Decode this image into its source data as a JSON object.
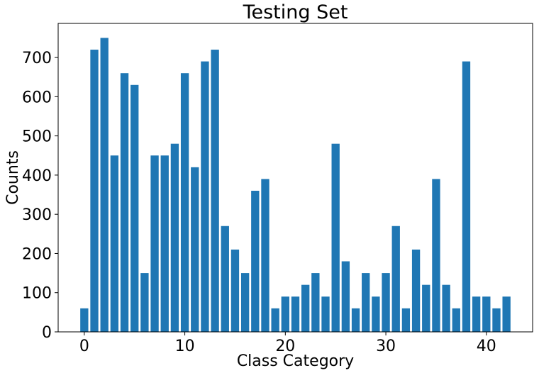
{
  "chart_data": {
    "type": "bar",
    "title": "Testing Set",
    "xlabel": "Class Category",
    "ylabel": "Counts",
    "x": [
      0,
      1,
      2,
      3,
      4,
      5,
      6,
      7,
      8,
      9,
      10,
      11,
      12,
      13,
      14,
      15,
      16,
      17,
      18,
      19,
      20,
      21,
      22,
      23,
      24,
      25,
      26,
      27,
      28,
      29,
      30,
      31,
      32,
      33,
      34,
      35,
      36,
      37,
      38,
      39,
      40,
      41,
      42
    ],
    "values": [
      60,
      720,
      750,
      450,
      660,
      630,
      150,
      450,
      450,
      480,
      660,
      420,
      690,
      720,
      270,
      210,
      150,
      360,
      390,
      60,
      90,
      90,
      120,
      150,
      90,
      480,
      180,
      60,
      150,
      90,
      150,
      270,
      60,
      210,
      120,
      390,
      120,
      60,
      690,
      90,
      90,
      60,
      90
    ],
    "xlim": [
      -2.6,
      44.6
    ],
    "ylim": [
      0,
      787
    ],
    "xticks": [
      "0",
      "10",
      "20",
      "30",
      "40"
    ],
    "xtick_values": [
      0,
      10,
      20,
      30,
      40
    ],
    "yticks": [
      "0",
      "100",
      "200",
      "300",
      "400",
      "500",
      "600",
      "700"
    ],
    "ytick_values": [
      0,
      100,
      200,
      300,
      400,
      500,
      600,
      700
    ],
    "bar_color": "#1f77b4",
    "grid": false
  }
}
